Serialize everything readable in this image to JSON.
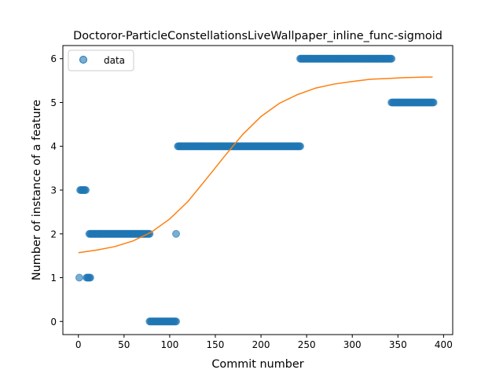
{
  "chart_data": {
    "type": "scatter",
    "title": "Doctoror-ParticleConstellationsLiveWallpaper_inline_func-sigmoid",
    "xlabel": "Commit number",
    "ylabel": "Number of instance of a feature",
    "xlim": [
      -17,
      410
    ],
    "ylim": [
      -0.3,
      6.3
    ],
    "xticks": [
      0,
      50,
      100,
      150,
      200,
      250,
      300,
      350,
      400
    ],
    "yticks": [
      0,
      1,
      2,
      3,
      4,
      5,
      6
    ],
    "grid": false,
    "legend": {
      "position": "top-left",
      "entries": [
        "data"
      ]
    },
    "colors": {
      "data": "#1f77b4",
      "fit": "#ff7f0e"
    },
    "data_segments": [
      {
        "x_start": 1,
        "x_end": 1,
        "y": 1
      },
      {
        "x_start": 2,
        "x_end": 8,
        "y": 3
      },
      {
        "x_start": 9,
        "x_end": 13,
        "y": 1
      },
      {
        "x_start": 12,
        "x_end": 78,
        "y": 2
      },
      {
        "x_start": 78,
        "x_end": 107,
        "y": 0
      },
      {
        "x_start": 107,
        "x_end": 107,
        "y": 2
      },
      {
        "x_start": 109,
        "x_end": 243,
        "y": 4
      },
      {
        "x_start": 243,
        "x_end": 343,
        "y": 6
      },
      {
        "x_start": 343,
        "x_end": 389,
        "y": 5
      }
    ],
    "fit_curve": {
      "name": "sigmoid",
      "x": [
        0,
        20,
        40,
        60,
        80,
        100,
        120,
        140,
        160,
        180,
        200,
        220,
        240,
        260,
        280,
        300,
        320,
        340,
        360,
        380,
        388
      ],
      "y": [
        1.57,
        1.63,
        1.71,
        1.84,
        2.04,
        2.34,
        2.74,
        3.25,
        3.77,
        4.27,
        4.68,
        4.98,
        5.18,
        5.33,
        5.42,
        5.48,
        5.53,
        5.55,
        5.57,
        5.58,
        5.58
      ]
    }
  }
}
